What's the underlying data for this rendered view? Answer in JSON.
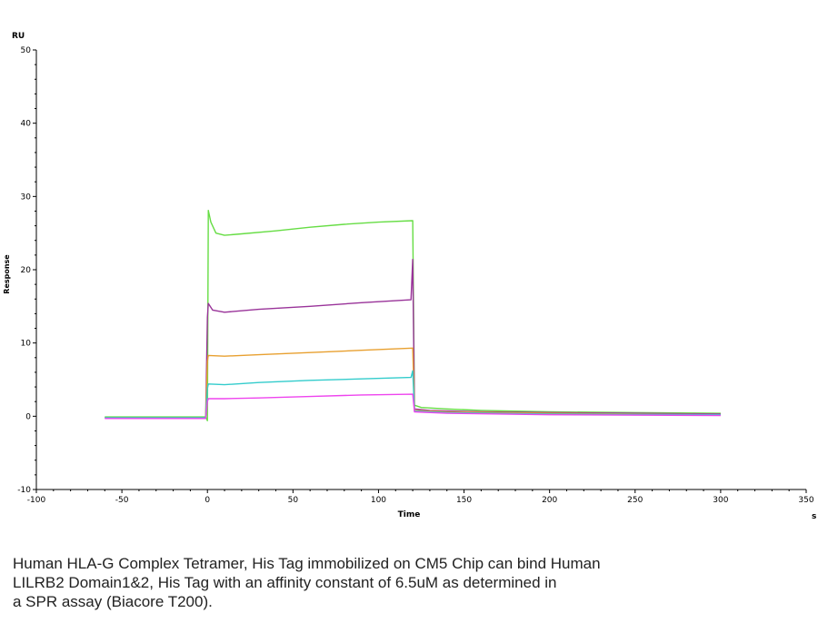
{
  "chart_data": {
    "type": "line",
    "xlabel": "Time",
    "ylabel": "Response",
    "x_unit": "s",
    "y_unit": "RU",
    "xlim": [
      -100,
      350
    ],
    "ylim": [
      -10,
      50
    ],
    "x_ticks": [
      -100,
      -50,
      0,
      50,
      100,
      150,
      200,
      250,
      300,
      350
    ],
    "y_ticks": [
      -10,
      0,
      10,
      20,
      30,
      40,
      50
    ],
    "grid": false,
    "series": [
      {
        "color": "#66dd44",
        "points": [
          [
            -60,
            -0.1
          ],
          [
            -1,
            -0.1
          ],
          [
            0,
            -0.6
          ],
          [
            0.5,
            28.1
          ],
          [
            2,
            26.5
          ],
          [
            5,
            25.0
          ],
          [
            10,
            24.7
          ],
          [
            20,
            24.9
          ],
          [
            40,
            25.3
          ],
          [
            60,
            25.8
          ],
          [
            80,
            26.2
          ],
          [
            100,
            26.5
          ],
          [
            120,
            26.7
          ],
          [
            121,
            1.5
          ],
          [
            125,
            1.2
          ],
          [
            140,
            1.0
          ],
          [
            160,
            0.8
          ],
          [
            200,
            0.6
          ],
          [
            250,
            0.5
          ],
          [
            300,
            0.4
          ]
        ]
      },
      {
        "color": "#993399",
        "points": [
          [
            -60,
            -0.2
          ],
          [
            -1,
            -0.2
          ],
          [
            0,
            13.5
          ],
          [
            0.5,
            15.4
          ],
          [
            3,
            14.5
          ],
          [
            10,
            14.2
          ],
          [
            30,
            14.6
          ],
          [
            60,
            15.0
          ],
          [
            90,
            15.5
          ],
          [
            119,
            15.9
          ],
          [
            120,
            21.4
          ],
          [
            121,
            1.0
          ],
          [
            130,
            0.8
          ],
          [
            160,
            0.6
          ],
          [
            200,
            0.5
          ],
          [
            250,
            0.4
          ],
          [
            300,
            0.3
          ]
        ]
      },
      {
        "color": "#e8a030",
        "points": [
          [
            -60,
            -0.2
          ],
          [
            -1,
            -0.2
          ],
          [
            0,
            7.5
          ],
          [
            0.5,
            8.3
          ],
          [
            10,
            8.2
          ],
          [
            30,
            8.4
          ],
          [
            60,
            8.7
          ],
          [
            90,
            9.0
          ],
          [
            120,
            9.3
          ],
          [
            121,
            0.8
          ],
          [
            140,
            0.6
          ],
          [
            200,
            0.4
          ],
          [
            300,
            0.2
          ]
        ]
      },
      {
        "color": "#33cccc",
        "points": [
          [
            -60,
            -0.2
          ],
          [
            -1,
            -0.2
          ],
          [
            0,
            3.8
          ],
          [
            0.5,
            4.4
          ],
          [
            10,
            4.3
          ],
          [
            30,
            4.6
          ],
          [
            60,
            4.9
          ],
          [
            90,
            5.1
          ],
          [
            119,
            5.3
          ],
          [
            120,
            6.2
          ],
          [
            121,
            0.7
          ],
          [
            140,
            0.5
          ],
          [
            200,
            0.3
          ],
          [
            300,
            0.2
          ]
        ]
      },
      {
        "color": "#ee44ee",
        "points": [
          [
            -60,
            -0.3
          ],
          [
            -1,
            -0.3
          ],
          [
            0,
            2.0
          ],
          [
            0.5,
            2.4
          ],
          [
            10,
            2.4
          ],
          [
            30,
            2.5
          ],
          [
            60,
            2.7
          ],
          [
            90,
            2.9
          ],
          [
            120,
            3.0
          ],
          [
            121,
            0.6
          ],
          [
            140,
            0.4
          ],
          [
            200,
            0.2
          ],
          [
            300,
            0.1
          ]
        ]
      }
    ]
  },
  "caption": {
    "line1": "Human HLA-G Complex Tetramer, His Tag immobilized on CM5 Chip can bind Human",
    "line2": "LILRB2 Domain1&2, His Tag with an affinity constant of 6.5uM as determined in",
    "line3": "a SPR assay (Biacore T200)."
  }
}
